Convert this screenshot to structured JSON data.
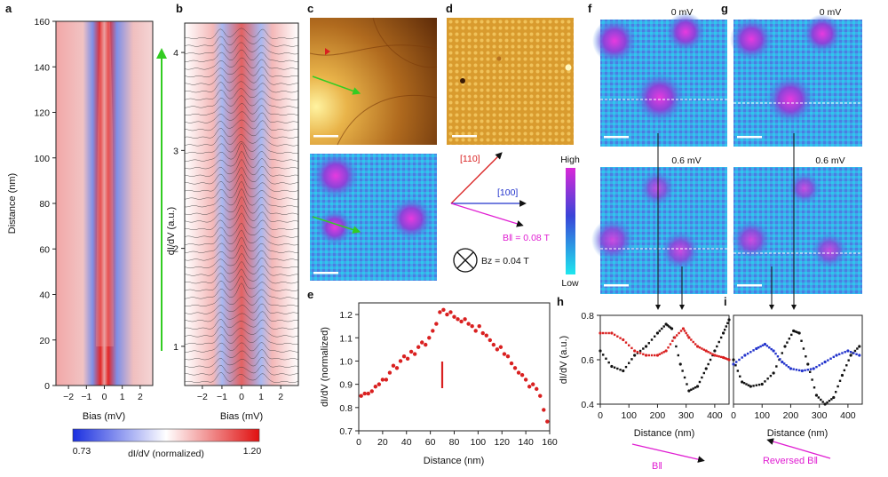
{
  "panel_labels": [
    "a",
    "b",
    "c",
    "d",
    "e",
    "f",
    "g",
    "h",
    "i"
  ],
  "colors": {
    "red": "#d92020",
    "blue": "#2233cc",
    "magenta": "#e01ed2",
    "green": "#33cc22",
    "black": "#111111",
    "cyan": "#22d8e8",
    "brown": "#8a4a0e",
    "gold": "#d8a43c"
  },
  "panel_a": {
    "xlabel": "Bias (mV)",
    "ylabel": "Distance (nm)",
    "xticks": [
      "−2",
      "−1",
      "0",
      "1",
      "2"
    ],
    "yticks": [
      "0",
      "20",
      "40",
      "60",
      "80",
      "100",
      "120",
      "140",
      "160"
    ],
    "colorbar_min": "0.73",
    "colorbar_max": "1.20",
    "colorbar_label": "dI/dV (normalized)"
  },
  "panel_b": {
    "xlabel": "Bias (mV)",
    "ylabel": "dI/dV (a.u.)",
    "xticks": [
      "−2",
      "−1",
      "0",
      "1",
      "2"
    ],
    "yticks": [
      "1",
      "2",
      "3",
      "4"
    ]
  },
  "panel_d_axes": {
    "dir_110": "[110]",
    "dir_100": "[100]",
    "b_parallel": "B‖ = 0.08 T",
    "b_z": "Bz = 0.04 T"
  },
  "scale_labels": {
    "high": "High",
    "low": "Low"
  },
  "panels_fg_labels": {
    "top": "0 mV",
    "bottom": "0.6 mV"
  },
  "field_labels": {
    "h_arrow": "B‖",
    "i_arrow": "Reversed B‖"
  },
  "chart_data": [
    {
      "id": "e",
      "type": "scatter",
      "xlabel": "Distance (nm)",
      "ylabel": "dI/dV (normalized)",
      "xlim": [
        0,
        160
      ],
      "ylim": [
        0.7,
        1.25
      ],
      "xticks": [
        "0",
        "20",
        "40",
        "60",
        "80",
        "100",
        "120",
        "140",
        "160"
      ],
      "yticks": [
        "0.7",
        "0.8",
        "0.9",
        "1.0",
        "1.1",
        "1.2"
      ],
      "series": [
        {
          "name": "dI/dV",
          "color": "#d92020",
          "x": [
            2,
            5,
            8,
            11,
            14,
            17,
            20,
            23,
            26,
            29,
            32,
            35,
            38,
            41,
            44,
            47,
            50,
            53,
            56,
            59,
            62,
            65,
            68,
            71,
            74,
            77,
            80,
            83,
            86,
            89,
            92,
            95,
            98,
            101,
            104,
            107,
            110,
            113,
            116,
            119,
            122,
            125,
            128,
            131,
            134,
            137,
            140,
            143,
            146,
            149,
            152,
            155,
            158
          ],
          "y": [
            0.85,
            0.86,
            0.86,
            0.87,
            0.89,
            0.9,
            0.92,
            0.92,
            0.95,
            0.98,
            0.97,
            1.0,
            1.02,
            1.01,
            1.04,
            1.03,
            1.06,
            1.08,
            1.07,
            1.1,
            1.13,
            1.16,
            1.21,
            1.22,
            1.2,
            1.21,
            1.19,
            1.18,
            1.17,
            1.18,
            1.16,
            1.15,
            1.13,
            1.15,
            1.12,
            1.11,
            1.09,
            1.07,
            1.05,
            1.06,
            1.03,
            1.02,
            0.99,
            0.97,
            0.95,
            0.94,
            0.92,
            0.89,
            0.9,
            0.88,
            0.85,
            0.79,
            0.74
          ]
        }
      ]
    },
    {
      "id": "h",
      "type": "scatter",
      "xlabel": "Distance (nm)",
      "ylabel": "dI/dV (a.u.)",
      "xlim": [
        0,
        450
      ],
      "ylim": [
        0.4,
        0.8
      ],
      "xticks": [
        "0",
        "100",
        "200",
        "300",
        "400"
      ],
      "yticks": [
        "0.4",
        "0.6",
        "0.8"
      ],
      "series": [
        {
          "name": "0 mV",
          "color": "#111111",
          "x": [
            0,
            40,
            80,
            120,
            160,
            200,
            230,
            250,
            280,
            310,
            340,
            370,
            400,
            430,
            450
          ],
          "y": [
            0.64,
            0.57,
            0.55,
            0.62,
            0.66,
            0.72,
            0.76,
            0.74,
            0.58,
            0.46,
            0.48,
            0.56,
            0.64,
            0.72,
            0.78
          ]
        },
        {
          "name": "0.6 mV",
          "color": "#d92020",
          "x": [
            0,
            40,
            80,
            120,
            160,
            200,
            230,
            260,
            290,
            310,
            340,
            370,
            400,
            430,
            450
          ],
          "y": [
            0.72,
            0.72,
            0.69,
            0.64,
            0.62,
            0.62,
            0.64,
            0.7,
            0.74,
            0.7,
            0.66,
            0.64,
            0.62,
            0.61,
            0.6
          ]
        }
      ]
    },
    {
      "id": "i",
      "type": "scatter",
      "xlabel": "Distance (nm)",
      "ylabel": "",
      "xlim": [
        0,
        450
      ],
      "ylim": [
        0.4,
        0.8
      ],
      "xticks": [
        "0",
        "100",
        "200",
        "300",
        "400"
      ],
      "yticks": [],
      "series": [
        {
          "name": "0 mV",
          "color": "#111111",
          "x": [
            0,
            30,
            60,
            100,
            140,
            180,
            210,
            230,
            260,
            290,
            320,
            350,
            380,
            410,
            440
          ],
          "y": [
            0.6,
            0.5,
            0.48,
            0.49,
            0.54,
            0.66,
            0.73,
            0.72,
            0.58,
            0.44,
            0.4,
            0.43,
            0.53,
            0.62,
            0.66
          ]
        },
        {
          "name": "0.6 mV",
          "color": "#2233cc",
          "x": [
            0,
            40,
            80,
            110,
            140,
            170,
            200,
            240,
            280,
            320,
            360,
            400,
            440
          ],
          "y": [
            0.58,
            0.62,
            0.65,
            0.67,
            0.64,
            0.59,
            0.56,
            0.55,
            0.56,
            0.59,
            0.62,
            0.64,
            0.62
          ]
        }
      ]
    }
  ]
}
